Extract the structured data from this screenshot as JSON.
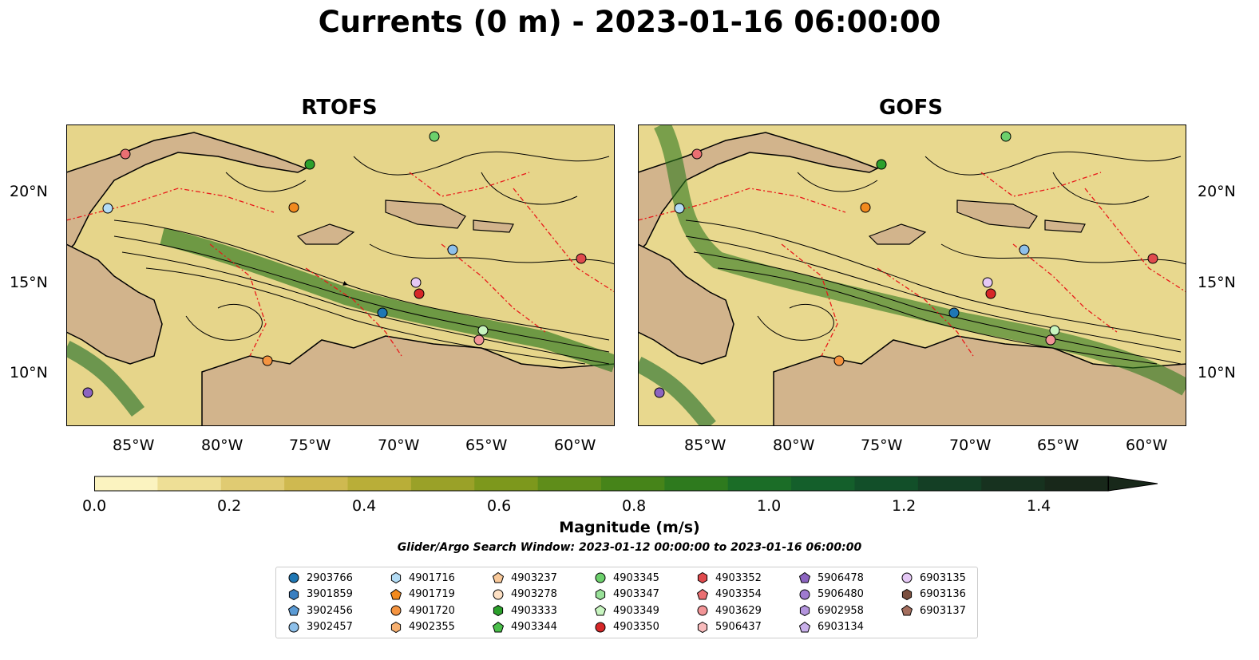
{
  "title": "Currents (0 m) - 2023-01-16 06:00:00",
  "panels": [
    {
      "title": "RTOFS",
      "lon_labels": [
        "85°W",
        "80°W",
        "75°W",
        "70°W",
        "65°W",
        "60°W"
      ],
      "lat_labels": [
        "20°N",
        "15°N",
        "10°N"
      ],
      "lat_side": "left"
    },
    {
      "title": "GOFS",
      "lon_labels": [
        "85°W",
        "80°W",
        "75°W",
        "70°W",
        "65°W",
        "60°W"
      ],
      "lat_labels": [
        "20°N",
        "15°N",
        "10°N"
      ],
      "lat_side": "right"
    }
  ],
  "colorbar": {
    "label": "Magnitude (m/s)",
    "ticks": [
      "0.0",
      "0.2",
      "0.4",
      "0.6",
      "0.8",
      "1.0",
      "1.2",
      "1.4"
    ],
    "colors": [
      "#fbf3c0",
      "#eedf96",
      "#e0cb72",
      "#cfb950",
      "#b9ae38",
      "#9aa128",
      "#7d981c",
      "#5f8d1a",
      "#468419",
      "#2e7a1e",
      "#1b6d27",
      "#145f2b",
      "#124f29",
      "#143f25",
      "#17321f",
      "#18281a"
    ],
    "range": [
      0,
      1.6
    ],
    "extend": "max"
  },
  "search_window": "Glider/Argo Search Window: 2023-01-12 00:00:00 to 2023-01-16 06:00:00",
  "legend": [
    {
      "id": "2903766",
      "marker": "circle",
      "color": "#1f77b4"
    },
    {
      "id": "3901859",
      "marker": "hexagon",
      "color": "#3a7fc1"
    },
    {
      "id": "3902456",
      "marker": "pentagon",
      "color": "#5b9bd5"
    },
    {
      "id": "3902457",
      "marker": "circle",
      "color": "#8ec0ea"
    },
    {
      "id": "4901716",
      "marker": "hexagon",
      "color": "#b3dcf5"
    },
    {
      "id": "4901719",
      "marker": "pentagon",
      "color": "#f28a1e"
    },
    {
      "id": "4901720",
      "marker": "circle",
      "color": "#f59440"
    },
    {
      "id": "4902355",
      "marker": "hexagon",
      "color": "#f7b070"
    },
    {
      "id": "4903237",
      "marker": "pentagon",
      "color": "#f9c99a"
    },
    {
      "id": "4903278",
      "marker": "circle",
      "color": "#fde0c4"
    },
    {
      "id": "4903333",
      "marker": "hexagon",
      "color": "#2ca02c"
    },
    {
      "id": "4903344",
      "marker": "pentagon",
      "color": "#4bbf4b"
    },
    {
      "id": "4903345",
      "marker": "circle",
      "color": "#6cd06c"
    },
    {
      "id": "4903347",
      "marker": "hexagon",
      "color": "#98e098"
    },
    {
      "id": "4903349",
      "marker": "pentagon",
      "color": "#c8f5c0"
    },
    {
      "id": "4903350",
      "marker": "circle",
      "color": "#d62728"
    },
    {
      "id": "4903352",
      "marker": "hexagon",
      "color": "#e04a4d"
    },
    {
      "id": "4903354",
      "marker": "pentagon",
      "color": "#ea6f72"
    },
    {
      "id": "4903629",
      "marker": "circle",
      "color": "#f29597"
    },
    {
      "id": "5906437",
      "marker": "hexagon",
      "color": "#f8bbbc"
    },
    {
      "id": "5906478",
      "marker": "pentagon",
      "color": "#8c64c0"
    },
    {
      "id": "5906480",
      "marker": "circle",
      "color": "#9f7ad0"
    },
    {
      "id": "6902958",
      "marker": "hexagon",
      "color": "#b394dd"
    },
    {
      "id": "6903134",
      "marker": "pentagon",
      "color": "#c9b0ea"
    },
    {
      "id": "6903135",
      "marker": "circle",
      "color": "#e5c8f5"
    },
    {
      "id": "6903136",
      "marker": "hexagon",
      "color": "#7b4f3f"
    },
    {
      "id": "6903137",
      "marker": "pentagon",
      "color": "#a46e5e"
    }
  ]
}
